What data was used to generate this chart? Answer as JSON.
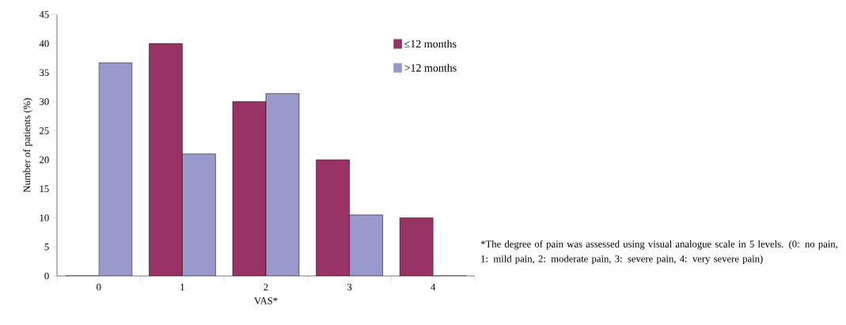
{
  "chart_data": {
    "type": "bar",
    "xlabel": "VAS*",
    "ylabel": "Number of patients (%)",
    "categories": [
      "0",
      "1",
      "2",
      "3",
      "4"
    ],
    "series": [
      {
        "name": "≤12 months",
        "color": "#993366",
        "values": [
          0,
          40,
          30,
          20,
          10
        ]
      },
      {
        "name": ">12 months",
        "color": "#9999cc",
        "values": [
          36.7,
          21,
          31.4,
          10.5,
          0
        ]
      }
    ],
    "ylim": [
      0,
      45
    ],
    "yticks": [
      0,
      5,
      10,
      15,
      20,
      25,
      30,
      35,
      40,
      45
    ],
    "grid": false,
    "legend": "top right",
    "annotations": [
      "*The degree of pain was assessed using visual analogue scale in 5 levels. (0: no pain, 1: mild pain, 2: moderate pain, 3: severe pain, 4: very severe pain)"
    ]
  }
}
